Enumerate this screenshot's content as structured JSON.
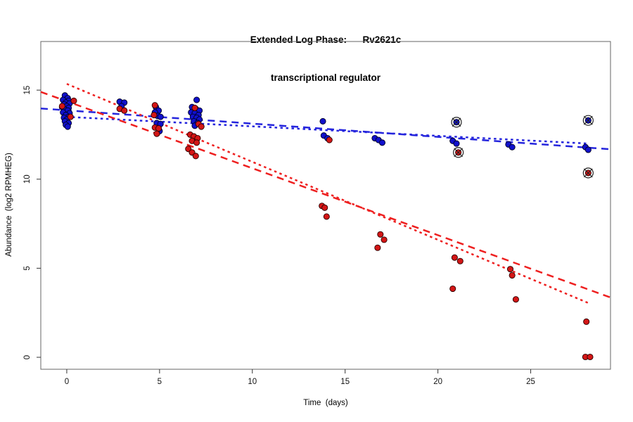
{
  "title": {
    "line1": "Extended Log Phase:      Rv2621c",
    "line2": "transcriptional regulator"
  },
  "axes": {
    "x_label": "Time  (days)",
    "y_label": "Abundance  (log2 RPMHEG)",
    "x_ticks": [
      0,
      5,
      10,
      15,
      20,
      25
    ],
    "y_ticks": [
      0,
      5,
      10,
      15
    ]
  },
  "colors": {
    "blue_point": "#1010CC",
    "blue_line": "#2525DD",
    "red_point": "#D31616",
    "red_line": "#EE2020",
    "point_edge": "#000000",
    "flag_mark": "#222222",
    "box": "#666666",
    "tick_text": "#111111"
  },
  "chart_data": {
    "type": "scatter",
    "title": "Extended Log Phase: Rv2621c transcriptional regulator",
    "xlabel": "Time (days)",
    "ylabel": "Abundance (log2 RPMHEG)",
    "xlim": [
      -1.4,
      29.3
    ],
    "ylim": [
      -0.671,
      17.73
    ],
    "grid": false,
    "legend": "none",
    "series": [
      {
        "name": "blue",
        "color": "#1010CC",
        "edge": "#000022",
        "flag": false,
        "points": [
          [
            -0.1,
            14.7
          ],
          [
            0.05,
            14.55
          ],
          [
            -0.2,
            14.45
          ],
          [
            0.1,
            14.4
          ],
          [
            -0.05,
            14.3
          ],
          [
            0.15,
            14.25
          ],
          [
            -0.15,
            14.2
          ],
          [
            0,
            14.1
          ],
          [
            -0.25,
            14.05
          ],
          [
            0.1,
            14.0
          ],
          [
            -0.1,
            13.9
          ],
          [
            0.05,
            13.85
          ],
          [
            -0.2,
            13.75
          ],
          [
            0.15,
            13.7
          ],
          [
            -0.05,
            13.6
          ],
          [
            0.1,
            13.5
          ],
          [
            -0.15,
            13.45
          ],
          [
            0,
            13.35
          ],
          [
            -0.1,
            13.25
          ],
          [
            0.1,
            13.15
          ],
          [
            -0.05,
            13.05
          ],
          [
            0.05,
            12.95
          ],
          [
            2.85,
            14.35
          ],
          [
            3.1,
            14.3
          ],
          [
            2.95,
            14.1
          ],
          [
            4.8,
            14.05
          ],
          [
            4.95,
            13.85
          ],
          [
            4.75,
            13.75
          ],
          [
            4.9,
            13.55
          ],
          [
            5.05,
            13.5
          ],
          [
            4.85,
            13.15
          ],
          [
            5.05,
            13.1
          ],
          [
            5.0,
            12.7
          ],
          [
            7.0,
            14.45
          ],
          [
            6.75,
            14.05
          ],
          [
            6.95,
            13.95
          ],
          [
            7.15,
            13.85
          ],
          [
            6.7,
            13.75
          ],
          [
            6.9,
            13.7
          ],
          [
            7.1,
            13.6
          ],
          [
            6.8,
            13.5
          ],
          [
            7.0,
            13.45
          ],
          [
            7.15,
            13.35
          ],
          [
            6.85,
            13.25
          ],
          [
            7.05,
            13.15
          ],
          [
            6.9,
            13.0
          ],
          [
            13.8,
            13.25
          ],
          [
            13.85,
            12.45
          ],
          [
            14.05,
            12.3
          ],
          [
            16.6,
            12.3
          ],
          [
            16.8,
            12.2
          ],
          [
            17.0,
            12.05
          ],
          [
            20.8,
            12.15
          ],
          [
            21.0,
            12.0
          ],
          [
            23.8,
            11.95
          ],
          [
            24.0,
            11.8
          ],
          [
            27.95,
            11.8
          ],
          [
            28.1,
            11.65
          ]
        ]
      },
      {
        "name": "red",
        "color": "#D31616",
        "edge": "#2A0000",
        "flag": false,
        "points": [
          [
            0.38,
            14.4
          ],
          [
            -0.25,
            14.1
          ],
          [
            0.2,
            13.5
          ],
          [
            2.85,
            13.95
          ],
          [
            3.1,
            13.85
          ],
          [
            4.75,
            14.15
          ],
          [
            4.7,
            13.6
          ],
          [
            4.75,
            12.9
          ],
          [
            4.95,
            12.85
          ],
          [
            4.85,
            12.55
          ],
          [
            6.9,
            14.0
          ],
          [
            7.1,
            13.1
          ],
          [
            7.25,
            12.95
          ],
          [
            6.65,
            12.5
          ],
          [
            6.85,
            12.4
          ],
          [
            7.05,
            12.3
          ],
          [
            6.75,
            12.15
          ],
          [
            7.0,
            12.05
          ],
          [
            6.55,
            11.7
          ],
          [
            6.75,
            11.5
          ],
          [
            6.95,
            11.3
          ],
          [
            14.15,
            12.2
          ],
          [
            13.75,
            8.5
          ],
          [
            13.9,
            8.4
          ],
          [
            14.0,
            7.9
          ],
          [
            16.9,
            6.9
          ],
          [
            17.1,
            6.6
          ],
          [
            16.75,
            6.15
          ],
          [
            20.9,
            5.6
          ],
          [
            21.2,
            5.4
          ],
          [
            20.8,
            3.85
          ],
          [
            23.9,
            4.95
          ],
          [
            24.0,
            4.6
          ],
          [
            24.2,
            3.25
          ],
          [
            28.0,
            2.0
          ],
          [
            27.95,
            0.02
          ],
          [
            28.2,
            0.02
          ]
        ]
      },
      {
        "name": "blue-flagged-outliers",
        "color": "#1010CC",
        "edge": "#000022",
        "flag": true,
        "points": [
          [
            21.0,
            13.2
          ],
          [
            28.1,
            13.3
          ]
        ]
      },
      {
        "name": "red-flagged-outliers",
        "color": "#D31616",
        "edge": "#2A0000",
        "flag": true,
        "points": [
          [
            21.1,
            11.5
          ],
          [
            28.1,
            10.35
          ]
        ]
      }
    ],
    "trend_lines": [
      {
        "series": "blue",
        "style": "dashed",
        "color": "#2525DD",
        "from": [
          -1.4,
          13.97
        ],
        "to": [
          29.3,
          11.68
        ]
      },
      {
        "series": "blue",
        "style": "dotted",
        "color": "#2525DD",
        "from": [
          0,
          13.5
        ],
        "to": [
          28.1,
          12.0
        ]
      },
      {
        "series": "red",
        "style": "dashed",
        "color": "#EE2020",
        "from": [
          -1.4,
          14.9
        ],
        "to": [
          29.3,
          3.36
        ]
      },
      {
        "series": "red",
        "style": "dotted",
        "color": "#EE2020",
        "from": [
          0,
          15.35
        ],
        "to": [
          28.1,
          3.05
        ]
      }
    ]
  }
}
